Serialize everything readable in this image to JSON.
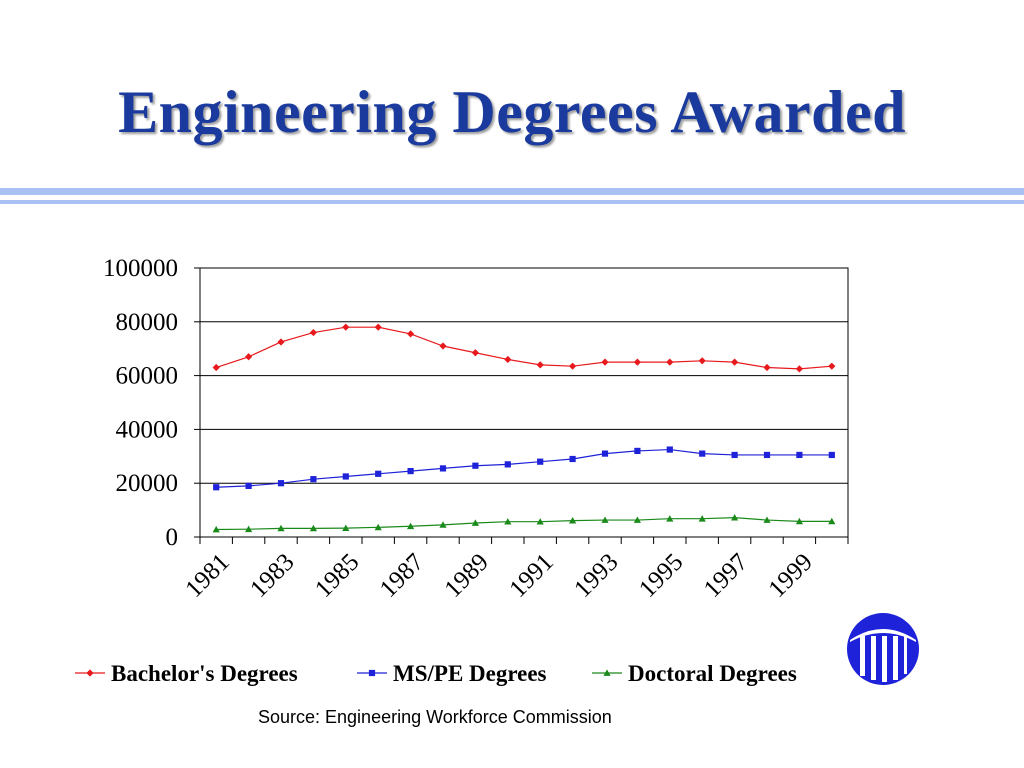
{
  "title": "Engineering Degrees Awarded",
  "source": "Source:  Engineering Workforce Commission",
  "chart_data": {
    "type": "line",
    "title": "",
    "xlabel": "",
    "ylabel": "",
    "x": [
      1981,
      1982,
      1983,
      1984,
      1985,
      1986,
      1987,
      1988,
      1989,
      1990,
      1991,
      1992,
      1993,
      1994,
      1995,
      1996,
      1997,
      1998,
      1999,
      2000
    ],
    "x_tick_labels": [
      "1981",
      "1983",
      "1985",
      "1987",
      "1989",
      "1991",
      "1993",
      "1995",
      "1997",
      "1999"
    ],
    "ylim": [
      0,
      100000
    ],
    "y_ticks": [
      "0",
      "20000",
      "40000",
      "60000",
      "80000",
      "100000"
    ],
    "grid": "horizontal",
    "legend": "bottom",
    "series": [
      {
        "name": "Bachelor's Degrees",
        "color": "#e8191c",
        "marker": "diamond",
        "values": [
          63000,
          67000,
          72500,
          76000,
          78000,
          78000,
          75500,
          71000,
          68500,
          66000,
          64000,
          63500,
          65000,
          65000,
          65000,
          65500,
          65000,
          63000,
          62500,
          63500
        ]
      },
      {
        "name": "MS/PE Degrees",
        "color": "#1e22d8",
        "marker": "square",
        "values": [
          18500,
          19000,
          20000,
          21500,
          22500,
          23500,
          24500,
          25500,
          26500,
          27000,
          28000,
          29000,
          31000,
          32000,
          32500,
          31000,
          30500,
          30500,
          30500,
          30500
        ]
      },
      {
        "name": "Doctoral Degrees",
        "color": "#1a8a1a",
        "marker": "triangle",
        "values": [
          2800,
          2900,
          3200,
          3200,
          3300,
          3600,
          4000,
          4500,
          5200,
          5700,
          5700,
          6100,
          6300,
          6300,
          6800,
          6800,
          7200,
          6300,
          5800,
          5800
        ]
      }
    ]
  }
}
